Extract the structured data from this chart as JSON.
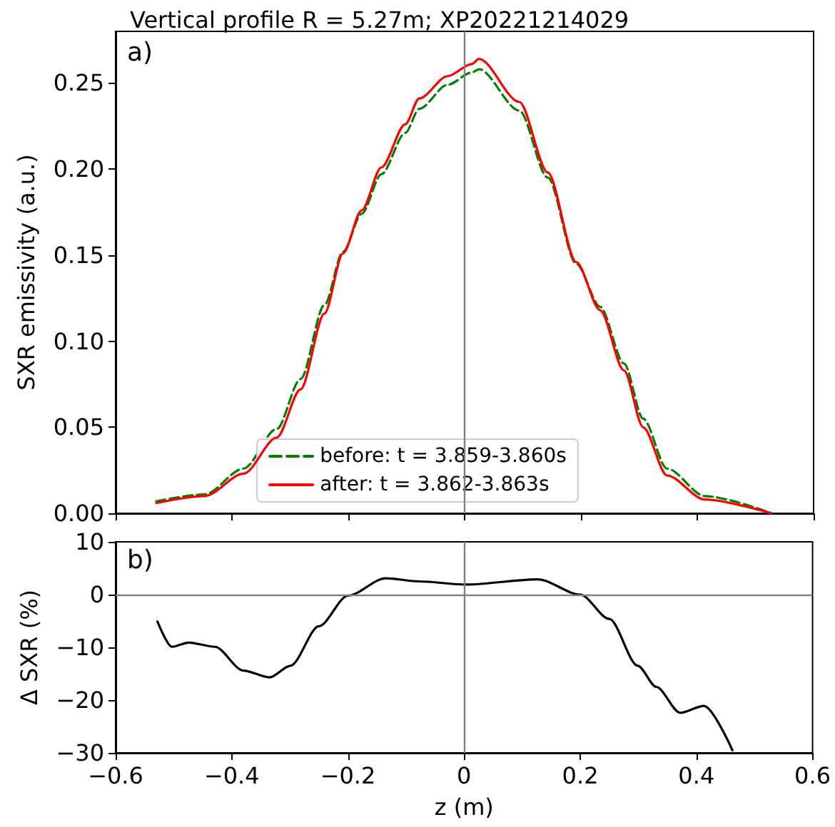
{
  "chart_data": [
    {
      "type": "line",
      "title": "Vertical profile R = 5.27m; XP20221214029",
      "ylabel": "SXR emissivity (a.u.)",
      "annotations": [
        "a)"
      ],
      "x": [
        -0.53,
        -0.447,
        -0.38,
        -0.323,
        -0.282,
        -0.241,
        -0.209,
        -0.177,
        -0.143,
        -0.102,
        -0.078,
        -0.029,
        0.012,
        0.025,
        0.094,
        0.143,
        0.192,
        0.233,
        0.274,
        0.307,
        0.348,
        0.413,
        0.528
      ],
      "series": [
        {
          "name": "before: t = 3.859-3.860s",
          "color": "#008000",
          "line_style": "dashed",
          "values": [
            0.007,
            0.011,
            0.026,
            0.049,
            0.078,
            0.121,
            0.152,
            0.174,
            0.197,
            0.221,
            0.235,
            0.249,
            0.256,
            0.258,
            0.234,
            0.195,
            0.145,
            0.12,
            0.087,
            0.055,
            0.026,
            0.01,
            0.0
          ]
        },
        {
          "name": "after: t = 3.862-3.863s",
          "color": "#ff0000",
          "line_style": "solid",
          "values": [
            0.006,
            0.01,
            0.023,
            0.044,
            0.072,
            0.116,
            0.151,
            0.176,
            0.201,
            0.226,
            0.241,
            0.254,
            0.261,
            0.264,
            0.239,
            0.198,
            0.146,
            0.118,
            0.083,
            0.05,
            0.022,
            0.008,
            0.0
          ]
        }
      ],
      "xlim": [
        -0.6,
        0.6
      ],
      "xticks": [
        -0.6,
        -0.4,
        -0.2,
        0.0,
        0.2,
        0.4,
        0.6
      ],
      "ylim": [
        0,
        0.28
      ],
      "yticks": [
        {
          "value": 0,
          "label": "0.00"
        },
        {
          "value": 0.05,
          "label": "0.05"
        },
        {
          "value": 0.1,
          "label": "0.10"
        },
        {
          "value": 0.15,
          "label": "0.15"
        },
        {
          "value": 0.2,
          "label": "0.20"
        },
        {
          "value": 0.25,
          "label": "0.25"
        }
      ],
      "tick_labels": "y",
      "legend": "bottom",
      "grid": false,
      "marker": "none",
      "ref_lines": [
        {
          "axis": "x",
          "value": 0,
          "color": "#808080"
        }
      ]
    },
    {
      "type": "line",
      "xlabel": "z (m)",
      "ylabel": "Δ SXR (%)",
      "annotations": [
        "b)"
      ],
      "x": [
        -0.528,
        -0.503,
        -0.474,
        -0.429,
        -0.38,
        -0.335,
        -0.299,
        -0.25,
        -0.2,
        -0.135,
        -0.078,
        0.004,
        0.127,
        0.2,
        0.25,
        0.299,
        0.331,
        0.372,
        0.413,
        0.462
      ],
      "series": [
        {
          "color": "#000000",
          "values": [
            -5.1,
            -9.9,
            -9.1,
            -9.9,
            -14.4,
            -15.7,
            -13.5,
            -6,
            -0.2,
            3.1,
            2.5,
            1.9,
            2.9,
            0,
            -4.6,
            -13.5,
            -17.5,
            -22.4,
            -21.1,
            -29.5
          ]
        }
      ],
      "xlim": [
        -0.6,
        0.6
      ],
      "xticks": [
        -0.6,
        -0.4,
        -0.2,
        0.0,
        0.2,
        0.4,
        0.6
      ],
      "ylim": [
        -30,
        10
      ],
      "yticks": [
        -30,
        -20,
        -10,
        0,
        10
      ],
      "legend": false,
      "grid": false,
      "marker": "none",
      "ref_lines": [
        {
          "axis": "x",
          "value": 0,
          "color": "#808080"
        },
        {
          "axis": "y",
          "value": 0,
          "color": "#808080"
        }
      ]
    }
  ]
}
